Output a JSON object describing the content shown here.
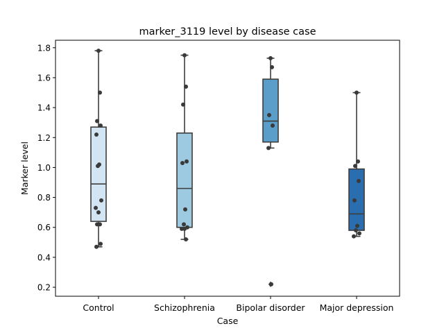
{
  "chart_data": {
    "type": "box",
    "title": "marker_3119 level by disease case",
    "xlabel": "Case",
    "ylabel": "Marker level",
    "ylim": [
      0.14,
      1.85
    ],
    "yticks": [
      0.2,
      0.4,
      0.6,
      0.8,
      1.0,
      1.2,
      1.4,
      1.6,
      1.8
    ],
    "ytick_labels": [
      "0.2",
      "0.4",
      "0.6",
      "0.8",
      "1.0",
      "1.2",
      "1.4",
      "1.6",
      "1.8"
    ],
    "grid": false,
    "categories": [
      "Control",
      "Schizophrenia",
      "Bipolar disorder",
      "Major depression"
    ],
    "colors": [
      "#d3e4f3",
      "#9dc9e1",
      "#5a9ec9",
      "#2a6eaf"
    ],
    "point_color": "#3a3a3a",
    "box_edge_color": "#3d3d3d",
    "boxes": [
      {
        "category": "Control",
        "q1": 0.64,
        "median": 0.89,
        "q3": 1.27,
        "whisker_low": 0.47,
        "whisker_high": 1.78,
        "outliers": [],
        "points": [
          1.78,
          1.5,
          1.31,
          1.28,
          1.22,
          1.02,
          1.01,
          0.78,
          0.73,
          0.7,
          0.62,
          0.62,
          0.49,
          0.47
        ]
      },
      {
        "category": "Schizophrenia",
        "q1": 0.6,
        "median": 0.86,
        "q3": 1.23,
        "whisker_low": 0.52,
        "whisker_high": 1.75,
        "outliers": [],
        "points": [
          1.75,
          1.54,
          1.42,
          1.04,
          1.03,
          0.72,
          0.62,
          0.6,
          0.59,
          0.59,
          0.52
        ]
      },
      {
        "category": "Bipolar disorder",
        "q1": 1.17,
        "median": 1.31,
        "q3": 1.59,
        "whisker_low": 1.13,
        "whisker_high": 1.73,
        "outliers": [
          0.22
        ],
        "points": [
          1.73,
          1.67,
          1.35,
          1.28,
          1.13,
          0.22
        ]
      },
      {
        "category": "Major depression",
        "q1": 0.58,
        "median": 0.69,
        "q3": 0.99,
        "whisker_low": 0.54,
        "whisker_high": 1.5,
        "outliers": [],
        "points": [
          1.5,
          1.04,
          1.01,
          0.91,
          0.78,
          0.61,
          0.58,
          0.56,
          0.54
        ]
      }
    ]
  }
}
